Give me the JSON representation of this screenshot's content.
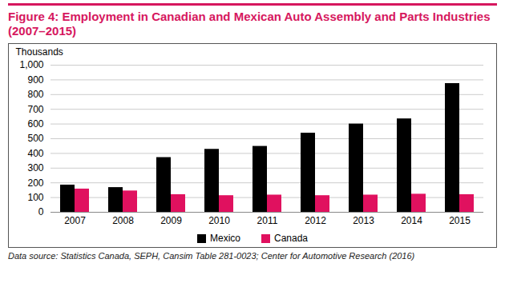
{
  "chart_data": {
    "type": "bar",
    "title": "Figure 4: Employment in Canadian and Mexican Auto Assembly and Parts Industries (2007–2015)",
    "ylabel": "Thousands",
    "categories": [
      "2007",
      "2008",
      "2009",
      "2010",
      "2011",
      "2012",
      "2013",
      "2014",
      "2015"
    ],
    "series": [
      {
        "name": "Mexico",
        "color": "#000000",
        "values": [
          185,
          168,
          372,
          428,
          448,
          538,
          600,
          635,
          875
        ]
      },
      {
        "name": "Canada",
        "color": "#e0115f",
        "values": [
          158,
          145,
          120,
          113,
          117,
          113,
          117,
          123,
          120
        ]
      }
    ],
    "ylim": [
      0,
      1000
    ],
    "yticks": [
      0,
      100,
      200,
      300,
      400,
      500,
      600,
      700,
      800,
      900,
      {
        "value": 1000,
        "label": "1,000"
      }
    ],
    "grid": true,
    "legend": "bottom",
    "caption": "Data source: Statistics Canada, SEPH, Cansim Table 281-0023; Center for Automotive Research (2016)"
  }
}
